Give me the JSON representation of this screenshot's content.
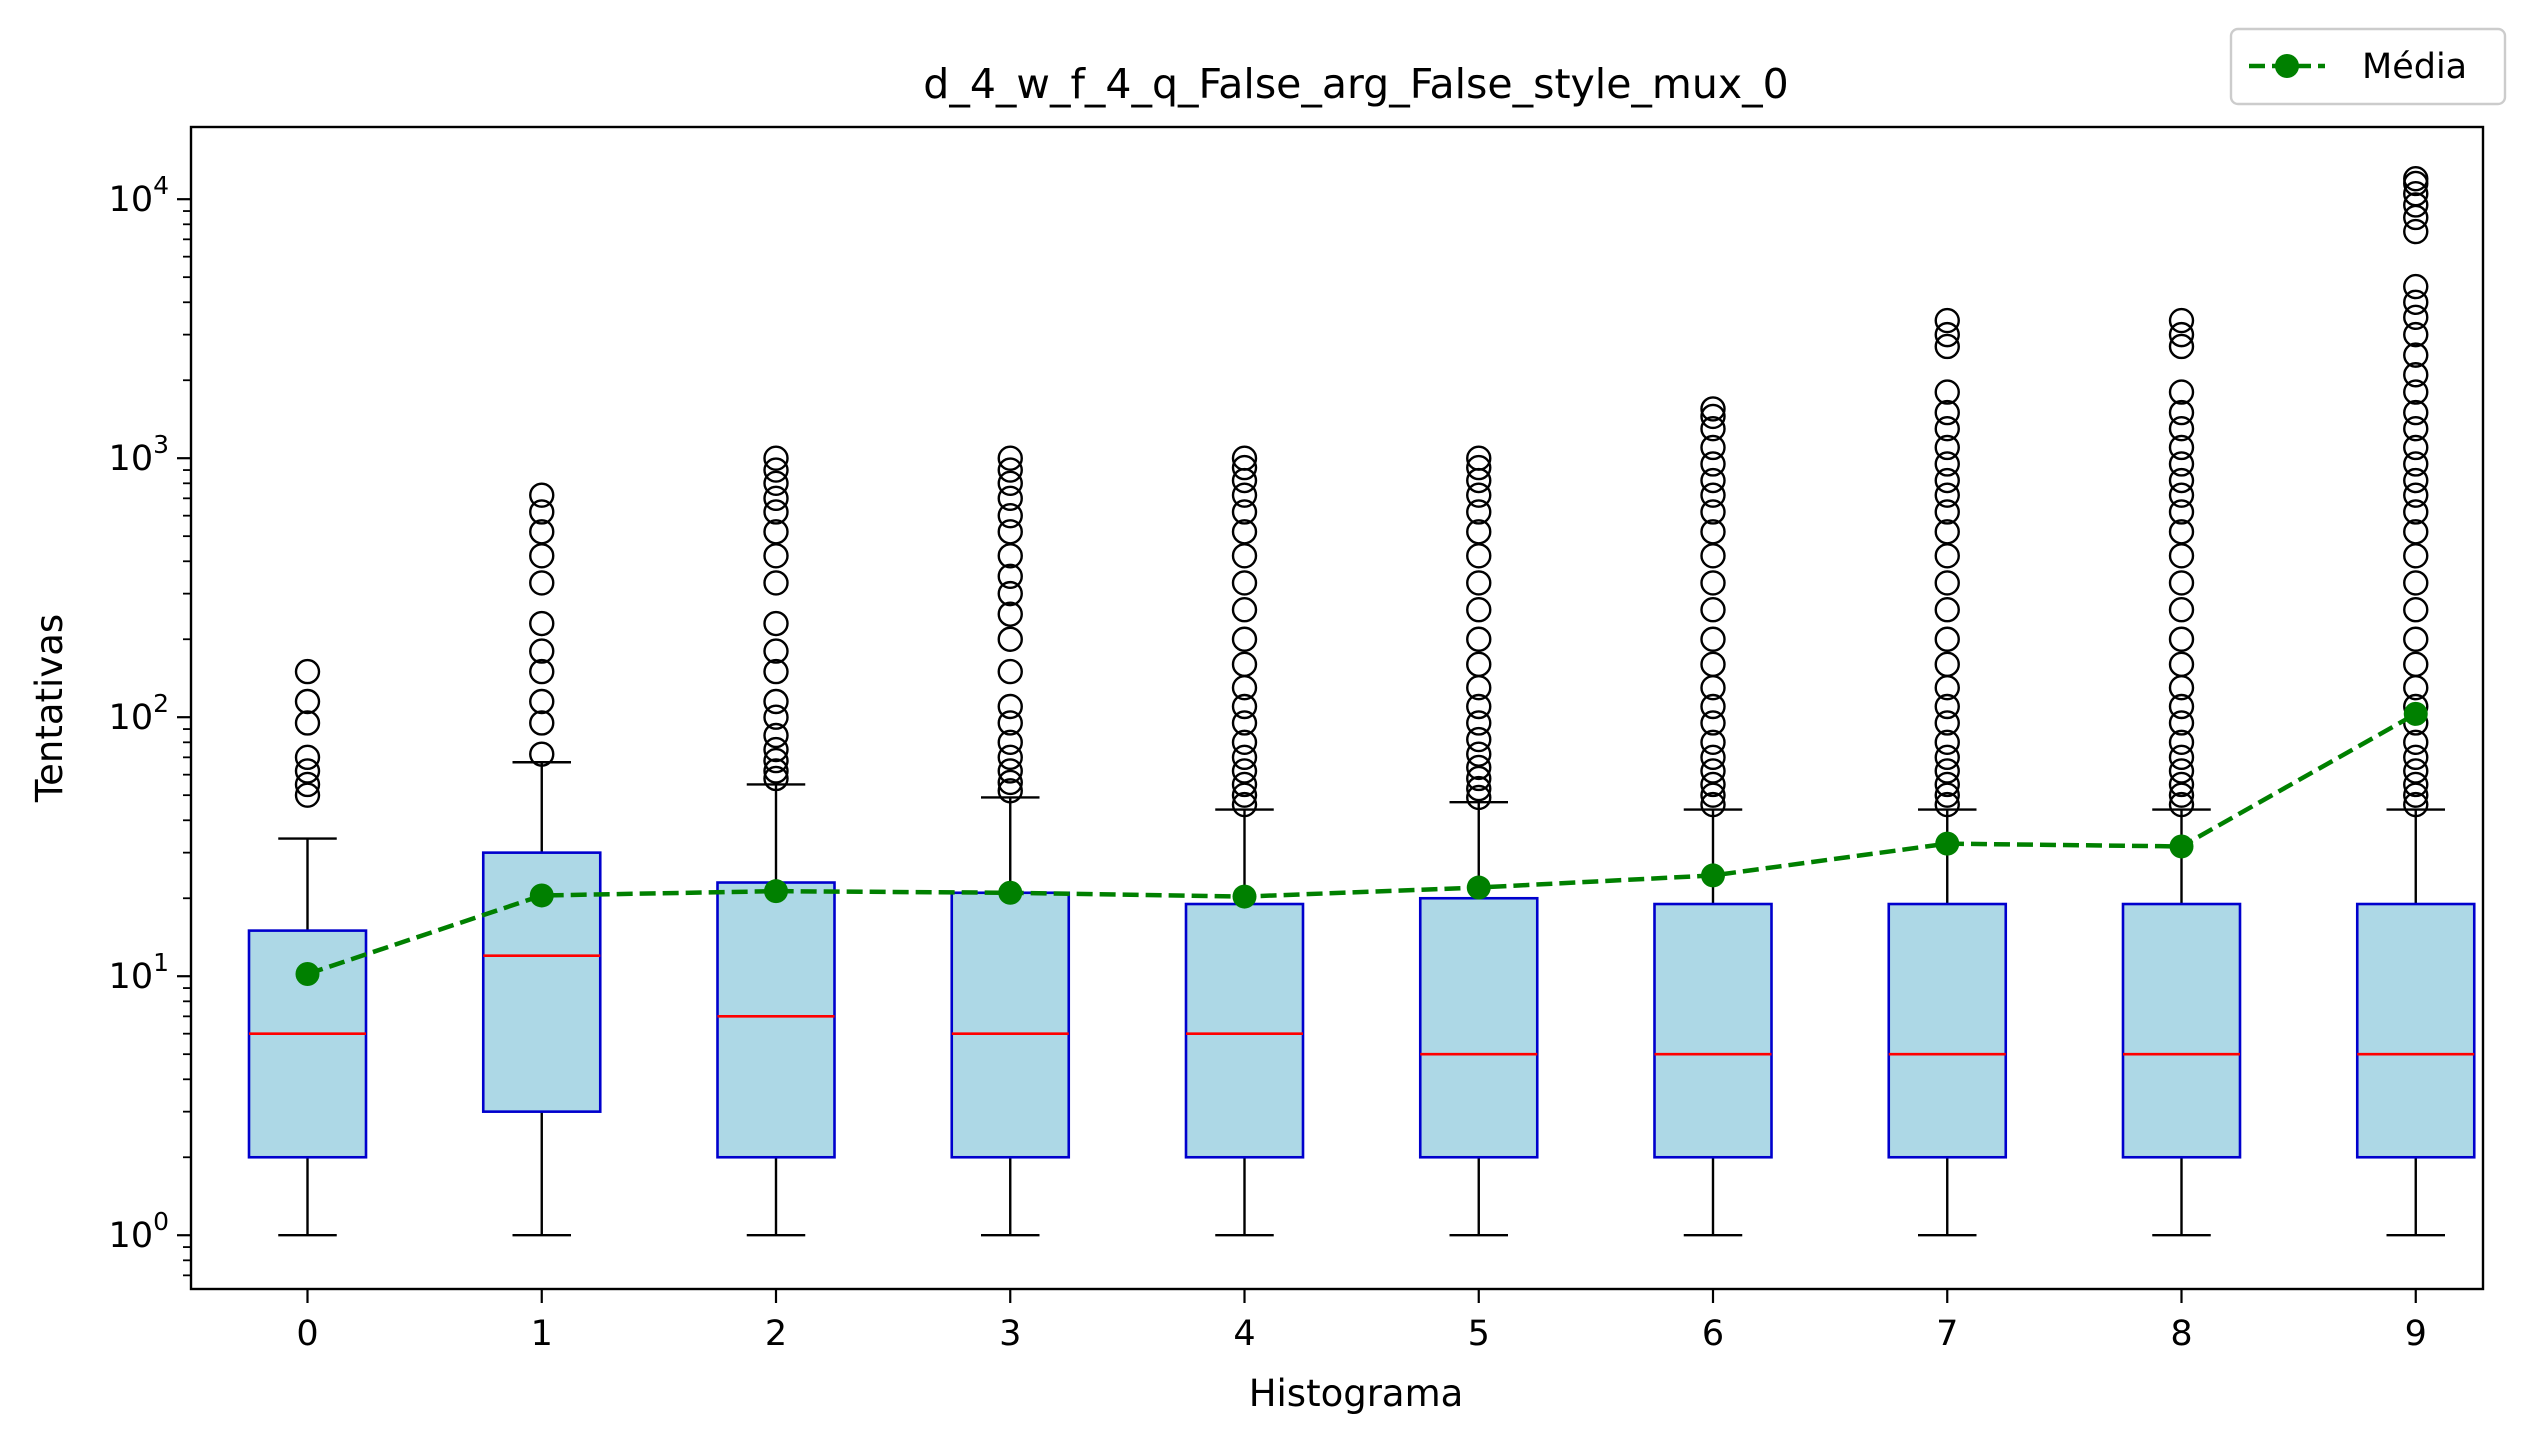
{
  "chart_data": {
    "type": "box",
    "title": "d_4_w_f_4_q_False_arg_False_style_mux_0",
    "xlabel": "Histograma",
    "ylabel": "Tentativas",
    "yscale": "log",
    "ylim": [
      0.62,
      19000
    ],
    "yticks": [
      {
        "value": 1,
        "base": "10",
        "exp": "0"
      },
      {
        "value": 10,
        "base": "10",
        "exp": "1"
      },
      {
        "value": 100,
        "base": "10",
        "exp": "2"
      },
      {
        "value": 1000,
        "base": "10",
        "exp": "3"
      },
      {
        "value": 10000,
        "base": "10",
        "exp": "4"
      }
    ],
    "categories": [
      "0",
      "1",
      "2",
      "3",
      "4",
      "5",
      "6",
      "7",
      "8",
      "9"
    ],
    "boxes": [
      {
        "whislo": 1,
        "q1": 2,
        "median": 6,
        "q3": 15,
        "whishi": 34,
        "fliers": [
          50,
          55,
          62,
          70,
          95,
          115,
          150
        ]
      },
      {
        "whislo": 1,
        "q1": 3,
        "median": 12,
        "q3": 30,
        "whishi": 67,
        "fliers": [
          72,
          95,
          115,
          150,
          180,
          230,
          330,
          420,
          520,
          620,
          720
        ]
      },
      {
        "whislo": 1,
        "q1": 2,
        "median": 7,
        "q3": 23,
        "whishi": 55,
        "fliers": [
          58,
          62,
          68,
          75,
          85,
          100,
          115,
          150,
          180,
          230,
          330,
          420,
          520,
          620,
          700,
          800,
          900,
          1000
        ]
      },
      {
        "whislo": 1,
        "q1": 2,
        "median": 6,
        "q3": 21,
        "whishi": 49,
        "fliers": [
          52,
          56,
          62,
          70,
          80,
          95,
          110,
          150,
          200,
          250,
          300,
          350,
          420,
          520,
          600,
          700,
          800,
          900,
          1000
        ]
      },
      {
        "whislo": 1,
        "q1": 2,
        "median": 6,
        "q3": 19,
        "whishi": 44,
        "fliers": [
          46,
          50,
          55,
          62,
          70,
          80,
          95,
          110,
          130,
          160,
          200,
          260,
          330,
          420,
          520,
          620,
          720,
          820,
          920,
          1000
        ]
      },
      {
        "whislo": 1,
        "q1": 2,
        "median": 5,
        "q3": 20,
        "whishi": 47,
        "fliers": [
          49,
          53,
          58,
          64,
          72,
          82,
          95,
          110,
          130,
          160,
          200,
          260,
          330,
          420,
          520,
          620,
          720,
          820,
          920,
          1000
        ]
      },
      {
        "whislo": 1,
        "q1": 2,
        "median": 5,
        "q3": 19,
        "whishi": 44,
        "fliers": [
          46,
          50,
          55,
          62,
          70,
          80,
          95,
          110,
          130,
          160,
          200,
          260,
          330,
          420,
          520,
          620,
          720,
          820,
          950,
          1100,
          1300,
          1450,
          1550
        ]
      },
      {
        "whislo": 1,
        "q1": 2,
        "median": 5,
        "q3": 19,
        "whishi": 44,
        "fliers": [
          46,
          50,
          55,
          62,
          70,
          80,
          95,
          110,
          130,
          160,
          200,
          260,
          330,
          420,
          520,
          620,
          720,
          820,
          950,
          1100,
          1300,
          1500,
          1800,
          2700,
          3000,
          3400
        ]
      },
      {
        "whislo": 1,
        "q1": 2,
        "median": 5,
        "q3": 19,
        "whishi": 44,
        "fliers": [
          46,
          50,
          55,
          62,
          70,
          80,
          95,
          110,
          130,
          160,
          200,
          260,
          330,
          420,
          520,
          620,
          720,
          820,
          950,
          1100,
          1300,
          1500,
          1800,
          2700,
          3000,
          3400
        ]
      },
      {
        "whislo": 1,
        "q1": 2,
        "median": 5,
        "q3": 19,
        "whishi": 44,
        "fliers": [
          46,
          50,
          55,
          62,
          70,
          80,
          95,
          110,
          130,
          160,
          200,
          260,
          330,
          420,
          520,
          620,
          720,
          820,
          950,
          1100,
          1300,
          1500,
          1800,
          2100,
          2500,
          3000,
          3500,
          4000,
          4600,
          7500,
          8500,
          9500,
          10500,
          11500,
          12000
        ]
      }
    ],
    "series": [
      {
        "name": "Média",
        "type": "line",
        "values": [
          10.2,
          20.5,
          21.3,
          21.0,
          20.3,
          22.0,
          24.5,
          32.5,
          31.7,
          103
        ]
      }
    ],
    "legend": {
      "position": "top-right",
      "entries": [
        "Média"
      ]
    },
    "colors": {
      "box_face": "#add8e6",
      "box_edge": "#0000cd",
      "median": "#ff0000",
      "mean": "#008000",
      "whisker": "#000000",
      "flier": "#000000"
    },
    "grid": false
  }
}
